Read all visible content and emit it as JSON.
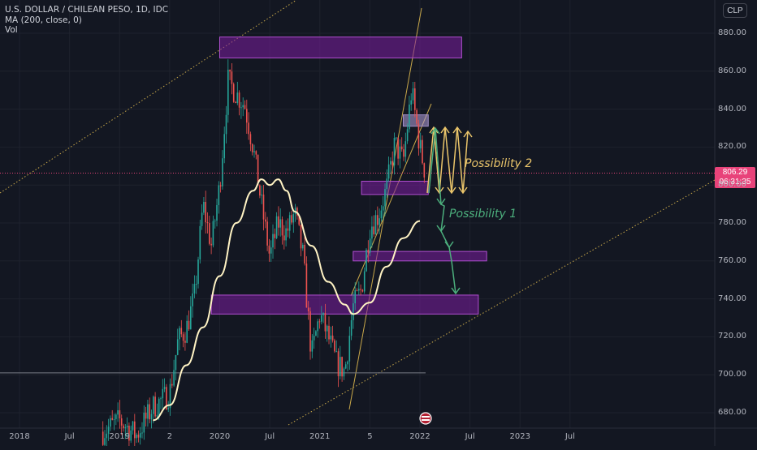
{
  "header": {
    "symbol_line": "U.S. DOLLAR / CHILEAN PESO, 1D, IDC",
    "ma_line": "MA (200, close, 0)",
    "vol_line": "Vol",
    "currency_button": "CLP"
  },
  "price_tag": {
    "price": "806.29",
    "countdown": "06:31:35",
    "color": "#e8437a"
  },
  "annotations": {
    "possibility_2": "Possibility 2",
    "possibility_1": "Possibility 1"
  },
  "colors": {
    "background": "#131722",
    "zone": "#9c27b0",
    "ma": "#fff3c4",
    "up": "#26a69a",
    "down": "#ef5350",
    "arrows_green": "#4caf7d",
    "arrows_yellow": "#e9c46a"
  },
  "chart_data": {
    "type": "candlestick",
    "symbol": "USD/CLP",
    "y_ticks": [
      "880.00",
      "860.00",
      "840.00",
      "820.00",
      "800.00",
      "780.00",
      "760.00",
      "740.00",
      "720.00",
      "700.00",
      "680.00"
    ],
    "x_ticks": [
      "2018",
      "Jul",
      "2019",
      "2",
      "2020",
      "Jul",
      "2021",
      "5",
      "2022",
      "Jul",
      "2023",
      "Jul"
    ],
    "ylim": [
      673,
      893
    ],
    "last_price": 806.29,
    "close_path": [
      [
        "2018-11",
        670
      ],
      [
        "2019-01",
        676
      ],
      [
        "2019-03",
        668
      ],
      [
        "2019-05",
        683
      ],
      [
        "2019-07",
        690
      ],
      [
        "2019-08",
        718
      ],
      [
        "2019-09",
        724
      ],
      [
        "2019-10",
        742
      ],
      [
        "2019-11",
        790
      ],
      [
        "2019-12",
        768
      ],
      [
        "2020-01",
        800
      ],
      [
        "2020-02",
        855
      ],
      [
        "2020-03",
        848
      ],
      [
        "2020-04",
        842
      ],
      [
        "2020-05",
        820
      ],
      [
        "2020-06",
        790
      ],
      [
        "2020-07",
        762
      ],
      [
        "2020-08",
        780
      ],
      [
        "2020-09",
        775
      ],
      [
        "2020-10",
        785
      ],
      [
        "2020-11",
        762
      ],
      [
        "2020-12",
        710
      ],
      [
        "2021-01",
        732
      ],
      [
        "2021-02",
        720
      ],
      [
        "2021-03",
        706
      ],
      [
        "2021-04",
        702
      ],
      [
        "2021-05",
        736
      ],
      [
        "2021-06",
        745
      ],
      [
        "2021-07",
        778
      ],
      [
        "2021-08",
        784
      ],
      [
        "2021-09",
        798
      ],
      [
        "2021-10",
        822
      ],
      [
        "2021-11",
        812
      ],
      [
        "2021-12",
        850
      ],
      [
        "2022-01",
        820
      ],
      [
        "2022-01-20",
        806.29
      ]
    ],
    "ma_200": [
      [
        "2019-05",
        676
      ],
      [
        "2019-07",
        684
      ],
      [
        "2019-09",
        705
      ],
      [
        "2019-11",
        725
      ],
      [
        "2020-01",
        752
      ],
      [
        "2020-03",
        780
      ],
      [
        "2020-05",
        797
      ],
      [
        "2020-06",
        803
      ],
      [
        "2020-07",
        800
      ],
      [
        "2020-08",
        803
      ],
      [
        "2020-09",
        797
      ],
      [
        "2020-10",
        786
      ],
      [
        "2020-12",
        768
      ],
      [
        "2021-02",
        749
      ],
      [
        "2021-04",
        737
      ],
      [
        "2021-05",
        732
      ],
      [
        "2021-07",
        738
      ],
      [
        "2021-09",
        757
      ],
      [
        "2021-11",
        772
      ],
      [
        "2022-01",
        781
      ]
    ],
    "zones": [
      {
        "from": "2020-01",
        "to": "2022-06",
        "low": 867,
        "high": 878
      },
      {
        "from": "2021-11",
        "to": "2022-02",
        "low": 831,
        "high": 837
      },
      {
        "from": "2021-06",
        "to": "2022-02",
        "low": 795,
        "high": 802
      },
      {
        "from": "2021-05",
        "to": "2022-09",
        "low": 760,
        "high": 765
      },
      {
        "from": "2019-12",
        "to": "2022-08",
        "low": 732,
        "high": 742
      }
    ],
    "horizontal_line": {
      "value": 701
    }
  }
}
